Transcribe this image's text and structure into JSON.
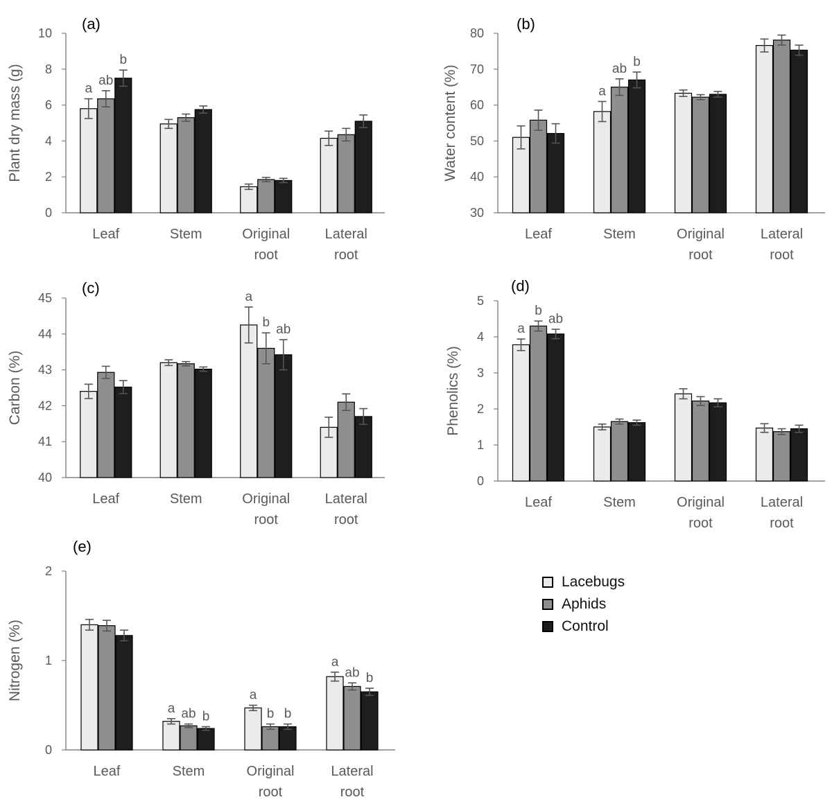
{
  "colors": {
    "series": [
      "#ebebeb",
      "#8f8f8f",
      "#1e1e1e"
    ],
    "axis": "#808080",
    "text": "#595959",
    "panel_label": "#000000",
    "error_bar": "#555555"
  },
  "legend": {
    "placement": "lower-right",
    "items": [
      "Lacebugs",
      "Aphids",
      "Control"
    ]
  },
  "chart_data": [
    {
      "panel_label": "(a)",
      "type": "bar",
      "title": "",
      "xlabel": "",
      "ylabel": "Plant dry mass (g)",
      "ylim": [
        0,
        10
      ],
      "ytick_labels": [
        "0",
        "2",
        "4",
        "6",
        "8",
        "10"
      ],
      "categories": [
        [
          "Leaf"
        ],
        [
          "Stem"
        ],
        [
          "Original",
          "root"
        ],
        [
          "Lateral",
          "root"
        ]
      ],
      "series": [
        {
          "name": "Lacebugs",
          "values": [
            5.8,
            4.95,
            1.45,
            4.15
          ],
          "errors": [
            0.55,
            0.25,
            0.15,
            0.4
          ]
        },
        {
          "name": "Aphids",
          "values": [
            6.35,
            5.3,
            1.85,
            4.35
          ],
          "errors": [
            0.45,
            0.2,
            0.12,
            0.35
          ]
        },
        {
          "name": "Control",
          "values": [
            7.5,
            5.75,
            1.8,
            5.1
          ],
          "errors": [
            0.45,
            0.2,
            0.12,
            0.35
          ]
        }
      ],
      "annotations": [
        {
          "category": 0,
          "series": 0,
          "text": "a"
        },
        {
          "category": 0,
          "series": 1,
          "text": "ab"
        },
        {
          "category": 0,
          "series": 2,
          "text": "b"
        }
      ],
      "grid": false
    },
    {
      "panel_label": "(b)",
      "type": "bar",
      "title": "",
      "xlabel": "",
      "ylabel": "Water content (%)",
      "ylim": [
        30,
        80
      ],
      "ytick_labels": [
        "30",
        "40",
        "50",
        "60",
        "70",
        "80"
      ],
      "categories": [
        [
          "Leaf"
        ],
        [
          "Stem"
        ],
        [
          "Original",
          "root"
        ],
        [
          "Lateral",
          "root"
        ]
      ],
      "series": [
        {
          "name": "Lacebugs",
          "values": [
            51,
            58.2,
            63.3,
            76.6
          ],
          "errors": [
            3.2,
            2.8,
            0.9,
            1.8
          ]
        },
        {
          "name": "Aphids",
          "values": [
            55.8,
            65,
            62.2,
            78.1
          ],
          "errors": [
            2.8,
            2.3,
            0.7,
            1.4
          ]
        },
        {
          "name": "Control",
          "values": [
            52.1,
            67,
            63,
            75.3
          ],
          "errors": [
            2.7,
            2.2,
            0.8,
            1.4
          ]
        }
      ],
      "annotations": [
        {
          "category": 1,
          "series": 0,
          "text": "a"
        },
        {
          "category": 1,
          "series": 1,
          "text": "ab"
        },
        {
          "category": 1,
          "series": 2,
          "text": "b"
        }
      ],
      "grid": false
    },
    {
      "panel_label": "(c)",
      "type": "bar",
      "title": "",
      "xlabel": "",
      "ylabel": "Carbon (%)",
      "ylim": [
        40,
        45
      ],
      "ytick_labels": [
        "40",
        "41",
        "42",
        "43",
        "44",
        "45"
      ],
      "categories": [
        [
          "Leaf"
        ],
        [
          "Stem"
        ],
        [
          "Original",
          "root"
        ],
        [
          "Lateral",
          "root"
        ]
      ],
      "series": [
        {
          "name": "Lacebugs",
          "values": [
            42.4,
            43.2,
            44.25,
            41.4
          ],
          "errors": [
            0.2,
            0.08,
            0.5,
            0.28
          ]
        },
        {
          "name": "Aphids",
          "values": [
            42.93,
            43.17,
            43.6,
            42.1
          ],
          "errors": [
            0.17,
            0.06,
            0.43,
            0.23
          ]
        },
        {
          "name": "Control",
          "values": [
            42.52,
            43.02,
            43.42,
            41.7
          ],
          "errors": [
            0.18,
            0.06,
            0.42,
            0.22
          ]
        }
      ],
      "annotations": [
        {
          "category": 2,
          "series": 0,
          "text": "a"
        },
        {
          "category": 2,
          "series": 1,
          "text": "b"
        },
        {
          "category": 2,
          "series": 2,
          "text": "ab"
        }
      ],
      "grid": false
    },
    {
      "panel_label": "(d)",
      "type": "bar",
      "title": "",
      "xlabel": "",
      "ylabel": "Phenolics (%)",
      "ylim": [
        0,
        5
      ],
      "ytick_labels": [
        "0",
        "1",
        "2",
        "3",
        "4",
        "5"
      ],
      "categories": [
        [
          "Leaf"
        ],
        [
          "Stem"
        ],
        [
          "Original",
          "root"
        ],
        [
          "Lateral",
          "root"
        ]
      ],
      "series": [
        {
          "name": "Lacebugs",
          "values": [
            3.78,
            1.5,
            2.42,
            1.47
          ],
          "errors": [
            0.16,
            0.08,
            0.14,
            0.12
          ]
        },
        {
          "name": "Aphids",
          "values": [
            4.3,
            1.65,
            2.22,
            1.37
          ],
          "errors": [
            0.14,
            0.07,
            0.12,
            0.08
          ]
        },
        {
          "name": "Control",
          "values": [
            4.08,
            1.62,
            2.17,
            1.45
          ],
          "errors": [
            0.13,
            0.07,
            0.11,
            0.1
          ]
        }
      ],
      "annotations": [
        {
          "category": 0,
          "series": 0,
          "text": "a"
        },
        {
          "category": 0,
          "series": 1,
          "text": "b"
        },
        {
          "category": 0,
          "series": 2,
          "text": "ab"
        }
      ],
      "grid": false
    },
    {
      "panel_label": "(e)",
      "type": "bar",
      "title": "",
      "xlabel": "",
      "ylabel": "Nitrogen (%)",
      "ylim": [
        0,
        2
      ],
      "ytick_labels": [
        "0",
        "1",
        "2"
      ],
      "categories": [
        [
          "Leaf"
        ],
        [
          "Stem"
        ],
        [
          "Original",
          "root"
        ],
        [
          "Lateral",
          "root"
        ]
      ],
      "series": [
        {
          "name": "Lacebugs",
          "values": [
            1.4,
            0.32,
            0.47,
            0.82
          ],
          "errors": [
            0.06,
            0.03,
            0.03,
            0.05
          ]
        },
        {
          "name": "Aphids",
          "values": [
            1.39,
            0.27,
            0.26,
            0.71
          ],
          "errors": [
            0.06,
            0.02,
            0.03,
            0.04
          ]
        },
        {
          "name": "Control",
          "values": [
            1.28,
            0.24,
            0.26,
            0.65
          ],
          "errors": [
            0.06,
            0.02,
            0.03,
            0.04
          ]
        }
      ],
      "annotations": [
        {
          "category": 1,
          "series": 0,
          "text": "a"
        },
        {
          "category": 1,
          "series": 1,
          "text": "ab"
        },
        {
          "category": 1,
          "series": 2,
          "text": "b"
        },
        {
          "category": 2,
          "series": 0,
          "text": "a"
        },
        {
          "category": 2,
          "series": 1,
          "text": "b"
        },
        {
          "category": 2,
          "series": 2,
          "text": "b"
        },
        {
          "category": 3,
          "series": 0,
          "text": "a"
        },
        {
          "category": 3,
          "series": 1,
          "text": "ab"
        },
        {
          "category": 3,
          "series": 2,
          "text": "b"
        }
      ],
      "grid": false
    }
  ]
}
